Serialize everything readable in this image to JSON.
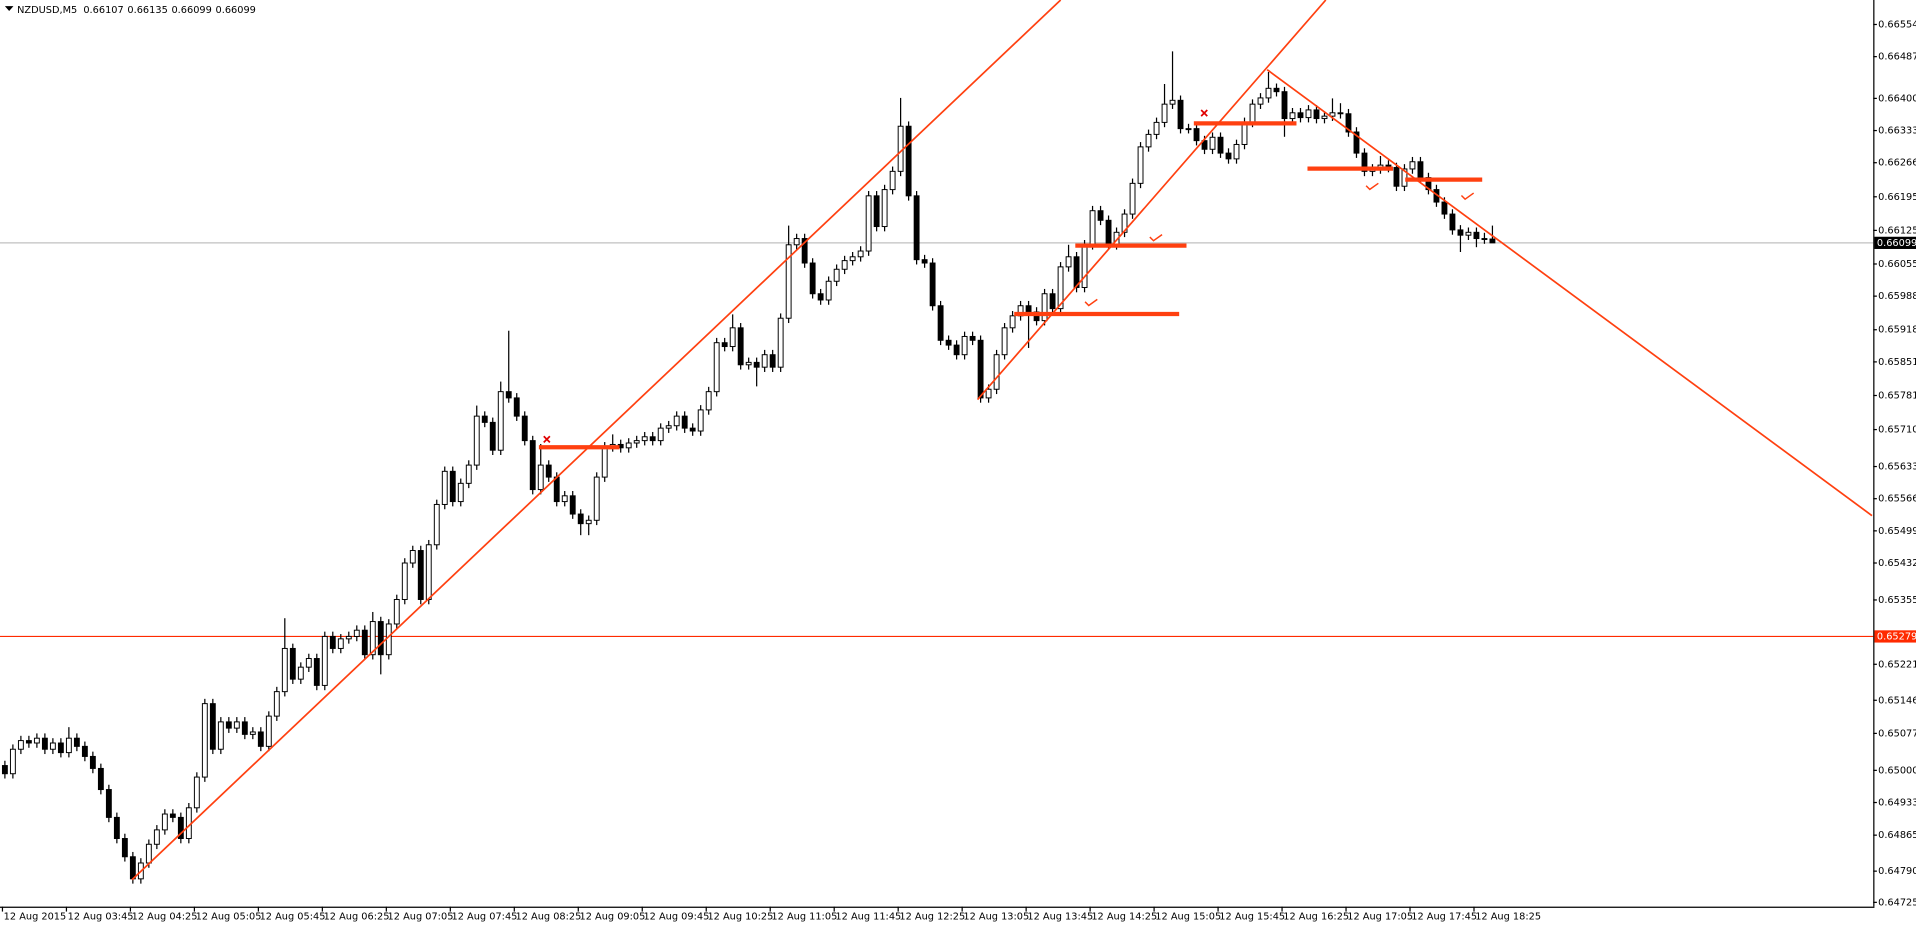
{
  "chart_data": {
    "type": "candlestick",
    "title": "NZDUSD,M5",
    "categories": [
      "12 Aug 2015",
      null,
      null,
      null,
      null,
      null,
      null,
      null,
      "12 Aug 03:45",
      null,
      null,
      null,
      null,
      null,
      null,
      null,
      "12 Aug 04:25",
      null,
      null,
      null,
      null,
      null,
      null,
      null,
      "12 Aug 05:05",
      null,
      null,
      null,
      null,
      null,
      null,
      null,
      "12 Aug 05:45",
      null,
      null,
      null,
      null,
      null,
      null,
      null,
      "12 Aug 06:25",
      null,
      null,
      null,
      null,
      null,
      null,
      null,
      "12 Aug 07:05",
      null,
      null,
      null,
      null,
      null,
      null,
      null,
      "12 Aug 07:45",
      null,
      null,
      null,
      null,
      null,
      null,
      null,
      "12 Aug 08:25",
      null,
      null,
      null,
      null,
      null,
      null,
      null,
      "12 Aug 09:05",
      null,
      null,
      null,
      null,
      null,
      null,
      null,
      "12 Aug 09:45",
      null,
      null,
      null,
      null,
      null,
      null,
      null,
      "12 Aug 10:25",
      null,
      null,
      null,
      null,
      null,
      null,
      null,
      "12 Aug 11:05",
      null,
      null,
      null,
      null,
      null,
      null,
      null,
      "12 Aug 11:45",
      null,
      null,
      null,
      null,
      null,
      null,
      null,
      "12 Aug 12:25",
      null,
      null,
      null,
      null,
      null,
      null,
      null,
      "12 Aug 13:05",
      null,
      null,
      null,
      null,
      null,
      null,
      null,
      "12 Aug 13:45",
      null,
      null,
      null,
      null,
      null,
      null,
      null,
      "12 Aug 14:25",
      null,
      null,
      null,
      null,
      null,
      null,
      null,
      "12 Aug 15:05",
      null,
      null,
      null,
      null,
      null,
      null,
      null,
      "12 Aug 15:45",
      null,
      null,
      null,
      null,
      null,
      null,
      null,
      "12 Aug 16:25",
      null,
      null,
      null,
      null,
      null,
      null,
      null,
      "12 Aug 17:05",
      null,
      null,
      null,
      null,
      null,
      null,
      null,
      "12 Aug 17:45",
      null,
      null,
      null,
      null,
      null,
      null,
      null,
      "12 Aug 18:25",
      null,
      null
    ],
    "open": [
      0.6501,
      0.64993,
      0.65044,
      0.65062,
      0.65057,
      0.65067,
      0.65044,
      0.65057,
      0.65037,
      0.65067,
      0.6505,
      0.65029,
      0.65004,
      0.6496,
      0.64902,
      0.64858,
      0.6482,
      0.64774,
      0.64807,
      0.64846,
      0.64876,
      0.64909,
      0.64902,
      0.64858,
      0.64922,
      0.64986,
      0.65139,
      0.65044,
      0.65101,
      0.65088,
      0.65101,
      0.65075,
      0.6508,
      0.6505,
      0.65113,
      0.65164,
      0.65254,
      0.6519,
      0.65215,
      0.65233,
      0.65177,
      0.65279,
      0.65254,
      0.65274,
      0.65279,
      0.65292,
      0.65241,
      0.6531,
      0.65241,
      0.65305,
      0.65356,
      0.65432,
      0.65458,
      0.65356,
      0.6547,
      0.65554,
      0.65623,
      0.6556,
      0.65598,
      0.65636,
      0.65738,
      0.65725,
      0.65667,
      0.65789,
      0.65776,
      0.65738,
      0.65687,
      0.65585,
      0.65636,
      0.65611,
      0.6556,
      0.65572,
      0.65534,
      0.65514,
      0.65521,
      0.65611,
      0.65674,
      0.65679,
      0.65672,
      0.65682,
      0.65687,
      0.65695,
      0.65687,
      0.65713,
      0.65718,
      0.65738,
      0.65713,
      0.65707,
      0.65751,
      0.65789,
      0.65891,
      0.65883,
      0.65922,
      0.65845,
      0.6585,
      0.6584,
      0.65866,
      0.6584,
      0.65942,
      0.66095,
      0.66108,
      0.66057,
      0.65993,
      0.6598,
      0.66019,
      0.66044,
      0.66062,
      0.6607,
      0.66082,
      0.66197,
      0.66133,
      0.6621,
      0.66248,
      0.66342,
      0.66197,
      0.66064,
      0.66057,
      0.65968,
      0.65896,
      0.65886,
      0.65866,
      0.65904,
      0.65896,
      0.65776,
      0.65794,
      0.65866,
      0.65922,
      0.65947,
      0.65968,
      0.65955,
      0.65937,
      0.65993,
      0.65962,
      0.66049,
      0.6607,
      0.66006,
      0.66095,
      0.66166,
      0.66146,
      0.66095,
      0.66121,
      0.66159,
      0.66223,
      0.66299,
      0.66325,
      0.6635,
      0.66388,
      0.66396,
      0.66337,
      0.66337,
      0.66312,
      0.66294,
      0.66319,
      0.66286,
      0.66274,
      0.66304,
      0.6635,
      0.66388,
      0.66401,
      0.66421,
      0.66414,
      0.66358,
      0.6637,
      0.6636,
      0.66376,
      0.66358,
      0.66363,
      0.6637,
      0.66368,
      0.6633,
      0.66286,
      0.66248,
      0.66253,
      0.66261,
      0.66256,
      0.66217,
      0.66253,
      0.66268,
      0.66235,
      0.6621,
      0.66184,
      0.66159,
      0.66126,
      0.66115,
      0.66121,
      0.66108,
      0.66107
    ],
    "high": [
      0.6502,
      0.65054,
      0.65072,
      0.65072,
      0.65077,
      0.65077,
      0.65067,
      0.65067,
      0.6509,
      0.65077,
      0.6506,
      0.65039,
      0.65014,
      0.6497,
      0.64912,
      0.64868,
      0.6483,
      0.64817,
      0.64856,
      0.64886,
      0.64919,
      0.64919,
      0.64912,
      0.64932,
      0.64996,
      0.65149,
      0.65149,
      0.65111,
      0.65111,
      0.65111,
      0.65111,
      0.6509,
      0.6509,
      0.65123,
      0.65174,
      0.65317,
      0.65264,
      0.65225,
      0.65243,
      0.65243,
      0.65289,
      0.65289,
      0.65284,
      0.65289,
      0.65302,
      0.65302,
      0.6533,
      0.6532,
      0.65315,
      0.65366,
      0.65442,
      0.65468,
      0.65468,
      0.6548,
      0.65564,
      0.65633,
      0.65633,
      0.65608,
      0.65646,
      0.6576,
      0.65748,
      0.65735,
      0.6581,
      0.65916,
      0.65786,
      0.65748,
      0.65697,
      0.6568,
      0.65646,
      0.65621,
      0.65582,
      0.65582,
      0.65544,
      0.65531,
      0.65621,
      0.65684,
      0.657,
      0.65689,
      0.65692,
      0.65697,
      0.65705,
      0.65705,
      0.65723,
      0.65728,
      0.65748,
      0.65748,
      0.65723,
      0.65761,
      0.65799,
      0.65901,
      0.65901,
      0.6595,
      0.65932,
      0.6586,
      0.6586,
      0.65876,
      0.65876,
      0.65952,
      0.66135,
      0.66118,
      0.66118,
      0.66067,
      0.66003,
      0.66029,
      0.66054,
      0.66072,
      0.6608,
      0.66092,
      0.66207,
      0.66207,
      0.6622,
      0.66258,
      0.66401,
      0.66352,
      0.66207,
      0.66074,
      0.66067,
      0.65978,
      0.65906,
      0.65896,
      0.65914,
      0.65914,
      0.65906,
      0.65804,
      0.65876,
      0.65932,
      0.65957,
      0.65978,
      0.65978,
      0.65965,
      0.66003,
      0.66003,
      0.66059,
      0.66095,
      0.6608,
      0.66105,
      0.66176,
      0.66176,
      0.66156,
      0.66131,
      0.66169,
      0.66233,
      0.66309,
      0.66335,
      0.6636,
      0.6643,
      0.66498,
      0.66406,
      0.66347,
      0.66347,
      0.66322,
      0.66329,
      0.66329,
      0.66296,
      0.66314,
      0.6636,
      0.66398,
      0.66411,
      0.66455,
      0.66431,
      0.66424,
      0.6638,
      0.6638,
      0.66386,
      0.66386,
      0.66373,
      0.664,
      0.6639,
      0.66378,
      0.6634,
      0.66296,
      0.66263,
      0.6628,
      0.66271,
      0.66266,
      0.66263,
      0.66278,
      0.66278,
      0.66245,
      0.6622,
      0.66194,
      0.66169,
      0.66136,
      0.66131,
      0.66131,
      0.6612,
      0.66135
    ],
    "low": [
      0.64983,
      0.64983,
      0.65034,
      0.65047,
      0.65047,
      0.65034,
      0.65034,
      0.65027,
      0.65027,
      0.6504,
      0.65019,
      0.64994,
      0.6495,
      0.64892,
      0.64848,
      0.6481,
      0.64764,
      0.64764,
      0.64797,
      0.64836,
      0.64866,
      0.64892,
      0.64848,
      0.64848,
      0.64912,
      0.64976,
      0.65034,
      0.65034,
      0.65078,
      0.65078,
      0.65065,
      0.65065,
      0.6504,
      0.6504,
      0.65103,
      0.65154,
      0.6518,
      0.6518,
      0.65205,
      0.65167,
      0.65167,
      0.65244,
      0.65244,
      0.65264,
      0.65269,
      0.65231,
      0.65231,
      0.652,
      0.65231,
      0.65295,
      0.65346,
      0.65422,
      0.65346,
      0.65346,
      0.6546,
      0.65544,
      0.6555,
      0.6555,
      0.65588,
      0.65626,
      0.65715,
      0.65657,
      0.65657,
      0.65766,
      0.65728,
      0.65677,
      0.65575,
      0.65575,
      0.65601,
      0.6555,
      0.6555,
      0.65524,
      0.6549,
      0.6549,
      0.65511,
      0.65601,
      0.65664,
      0.65662,
      0.65662,
      0.65672,
      0.65677,
      0.65677,
      0.65677,
      0.65703,
      0.65708,
      0.65703,
      0.65697,
      0.65697,
      0.65741,
      0.65779,
      0.65873,
      0.65873,
      0.65835,
      0.65835,
      0.658,
      0.6583,
      0.6583,
      0.6583,
      0.65932,
      0.66085,
      0.66047,
      0.65983,
      0.6597,
      0.6597,
      0.66009,
      0.66034,
      0.66052,
      0.6606,
      0.66072,
      0.66123,
      0.66123,
      0.662,
      0.66238,
      0.66187,
      0.66054,
      0.66047,
      0.65958,
      0.65886,
      0.65876,
      0.65856,
      0.65856,
      0.65886,
      0.65766,
      0.65766,
      0.65784,
      0.65856,
      0.65912,
      0.65937,
      0.6588,
      0.65927,
      0.65927,
      0.65952,
      0.65952,
      0.66039,
      0.65996,
      0.65996,
      0.66085,
      0.66136,
      0.66085,
      0.66085,
      0.66111,
      0.66149,
      0.66213,
      0.66289,
      0.66315,
      0.6634,
      0.66378,
      0.66327,
      0.66327,
      0.66302,
      0.66284,
      0.66284,
      0.66276,
      0.66264,
      0.66264,
      0.66294,
      0.6634,
      0.66378,
      0.66391,
      0.66404,
      0.6632,
      0.66348,
      0.6635,
      0.6635,
      0.66348,
      0.66348,
      0.66353,
      0.66358,
      0.6632,
      0.66276,
      0.66238,
      0.66238,
      0.66243,
      0.66246,
      0.66207,
      0.66207,
      0.66243,
      0.66225,
      0.662,
      0.66174,
      0.66149,
      0.66116,
      0.6608,
      0.66105,
      0.6609,
      0.66097,
      0.66099
    ],
    "close": [
      0.64993,
      0.65044,
      0.65062,
      0.65057,
      0.65067,
      0.65044,
      0.65057,
      0.65037,
      0.65067,
      0.6505,
      0.65029,
      0.65004,
      0.6496,
      0.64902,
      0.64858,
      0.6482,
      0.64774,
      0.64807,
      0.64846,
      0.64876,
      0.64909,
      0.64902,
      0.64858,
      0.64922,
      0.64986,
      0.65139,
      0.65044,
      0.65101,
      0.65088,
      0.65101,
      0.65075,
      0.6508,
      0.6505,
      0.65113,
      0.65164,
      0.65254,
      0.6519,
      0.65215,
      0.65233,
      0.65177,
      0.65279,
      0.65254,
      0.65274,
      0.65279,
      0.65292,
      0.65241,
      0.6531,
      0.65241,
      0.65305,
      0.65356,
      0.65432,
      0.65458,
      0.65356,
      0.6547,
      0.65554,
      0.65623,
      0.6556,
      0.65598,
      0.65636,
      0.65738,
      0.65725,
      0.65667,
      0.65789,
      0.65776,
      0.65738,
      0.65687,
      0.65585,
      0.65636,
      0.65611,
      0.6556,
      0.65572,
      0.65534,
      0.65514,
      0.65521,
      0.65611,
      0.65674,
      0.65679,
      0.65672,
      0.65682,
      0.65687,
      0.65695,
      0.65687,
      0.65713,
      0.65718,
      0.65738,
      0.65713,
      0.65707,
      0.65751,
      0.65789,
      0.65891,
      0.65883,
      0.65922,
      0.65845,
      0.6585,
      0.6584,
      0.65866,
      0.6584,
      0.65942,
      0.66095,
      0.66108,
      0.66057,
      0.65993,
      0.6598,
      0.66019,
      0.66044,
      0.66062,
      0.6607,
      0.66082,
      0.66197,
      0.66133,
      0.6621,
      0.66248,
      0.66342,
      0.66197,
      0.66064,
      0.66057,
      0.65968,
      0.65896,
      0.65886,
      0.65866,
      0.65904,
      0.65896,
      0.65776,
      0.65794,
      0.65866,
      0.65922,
      0.65947,
      0.65968,
      0.65955,
      0.65937,
      0.65993,
      0.65962,
      0.66049,
      0.6607,
      0.66006,
      0.66095,
      0.66166,
      0.66146,
      0.66095,
      0.66121,
      0.66159,
      0.66223,
      0.66299,
      0.66325,
      0.6635,
      0.66388,
      0.66396,
      0.66337,
      0.66337,
      0.66312,
      0.66294,
      0.66319,
      0.66286,
      0.66274,
      0.66304,
      0.6635,
      0.66388,
      0.66401,
      0.66421,
      0.66414,
      0.66358,
      0.6637,
      0.6636,
      0.66376,
      0.66358,
      0.66363,
      0.6637,
      0.66368,
      0.6633,
      0.66286,
      0.66248,
      0.66253,
      0.66261,
      0.66256,
      0.66217,
      0.66253,
      0.66268,
      0.66235,
      0.6621,
      0.66184,
      0.66159,
      0.66126,
      0.66115,
      0.66121,
      0.66108,
      0.66107,
      0.66099
    ],
    "colors": {
      "up": "#ffffff",
      "down": "#000000",
      "outline": "#000000",
      "current_line": "#c0c0c0",
      "current_label": "#000000"
    },
    "hline": {
      "value": 0.65279,
      "color": "#ff2a00"
    },
    "ylim": [
      0.64716,
      0.66605
    ],
    "yticks": [
      0.66554,
      0.66487,
      {
        "value": 0.664,
        "label": "0.66400"
      },
      0.66333,
      0.66266,
      0.66195,
      0.66125,
      0.66055,
      0.65988,
      0.65918,
      0.65851,
      0.65781,
      {
        "value": 0.6571,
        "label": "0.65710"
      },
      0.65633,
      0.65566,
      0.65499,
      0.65432,
      0.65355,
      0.65221,
      0.65146,
      0.65077,
      {
        "value": 0.65,
        "label": "0.65000"
      },
      0.64933,
      0.64865,
      {
        "value": 0.6479,
        "label": "0.64790"
      },
      0.64725
    ],
    "grid": false
  }
}
